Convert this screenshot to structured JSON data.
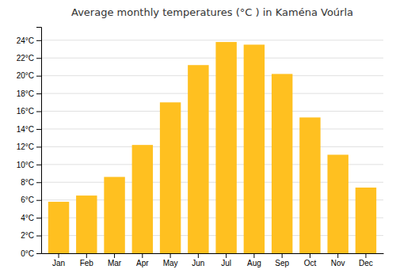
{
  "chart_data": {
    "type": "bar",
    "title": "Average monthly temperatures (°C ) in Kaména Voúrla",
    "categories": [
      "Jan",
      "Feb",
      "Mar",
      "Apr",
      "May",
      "Jun",
      "Jul",
      "Aug",
      "Sep",
      "Oct",
      "Nov",
      "Dec"
    ],
    "values": [
      5.8,
      6.5,
      8.6,
      12.2,
      17.0,
      21.2,
      23.8,
      23.5,
      20.2,
      15.3,
      11.1,
      7.4
    ],
    "color": "#FFC020",
    "ylim": [
      0,
      25.5
    ],
    "yticks": [
      {
        "value": 0,
        "label": "0°C"
      },
      {
        "value": 2,
        "label": "2°C"
      },
      {
        "value": 4,
        "label": "4°C"
      },
      {
        "value": 6,
        "label": "6°C"
      },
      {
        "value": 8,
        "label": "8°C"
      },
      {
        "value": 10,
        "label": "10°C"
      },
      {
        "value": 12,
        "label": "12°C"
      },
      {
        "value": 14,
        "label": "14°C"
      },
      {
        "value": 16,
        "label": "16°C"
      },
      {
        "value": 18,
        "label": "18°C"
      },
      {
        "value": 20,
        "label": "20°C"
      },
      {
        "value": 22,
        "label": "22°C"
      },
      {
        "value": 24,
        "label": "24°C"
      }
    ],
    "grid": true
  }
}
